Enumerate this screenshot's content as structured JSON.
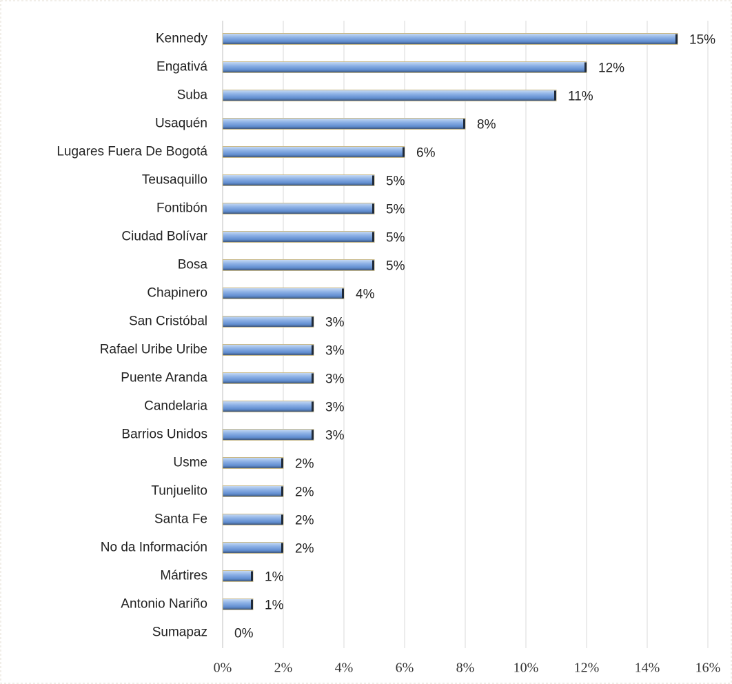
{
  "chart_data": {
    "type": "bar",
    "orientation": "horizontal",
    "categories": [
      "Kennedy",
      "Engativá",
      "Suba",
      "Usaquén",
      "Lugares Fuera De Bogotá",
      "Teusaquillo",
      "Fontibón",
      "Ciudad Bolívar",
      "Bosa",
      "Chapinero",
      "San Cristóbal",
      "Rafael Uribe Uribe",
      "Puente Aranda",
      "Candelaria",
      "Barrios Unidos",
      "Usme",
      "Tunjuelito",
      "Santa Fe",
      "No da Información",
      "Mártires",
      "Antonio Nariño",
      "Sumapaz"
    ],
    "values": [
      15,
      12,
      11,
      8,
      6,
      5,
      5,
      5,
      5,
      4,
      3,
      3,
      3,
      3,
      3,
      2,
      2,
      2,
      2,
      1,
      1,
      0
    ],
    "value_labels": [
      "15%",
      "12%",
      "11%",
      "8%",
      "6%",
      "5%",
      "5%",
      "5%",
      "5%",
      "4%",
      "3%",
      "3%",
      "3%",
      "3%",
      "3%",
      "2%",
      "2%",
      "2%",
      "2%",
      "1%",
      "1%",
      "0%"
    ],
    "color": "#7ea6de",
    "xlim": [
      0,
      16
    ],
    "xticks": [
      {
        "value": 0,
        "label": "0%"
      },
      {
        "value": 2,
        "label": "2%"
      },
      {
        "value": 4,
        "label": "4%"
      },
      {
        "value": 6,
        "label": "6%"
      },
      {
        "value": 8,
        "label": "8%"
      },
      {
        "value": 10,
        "label": "10%"
      },
      {
        "value": 12,
        "label": "12%"
      },
      {
        "value": 14,
        "label": "14%"
      },
      {
        "value": 16,
        "label": "16%"
      }
    ],
    "grid": true
  }
}
